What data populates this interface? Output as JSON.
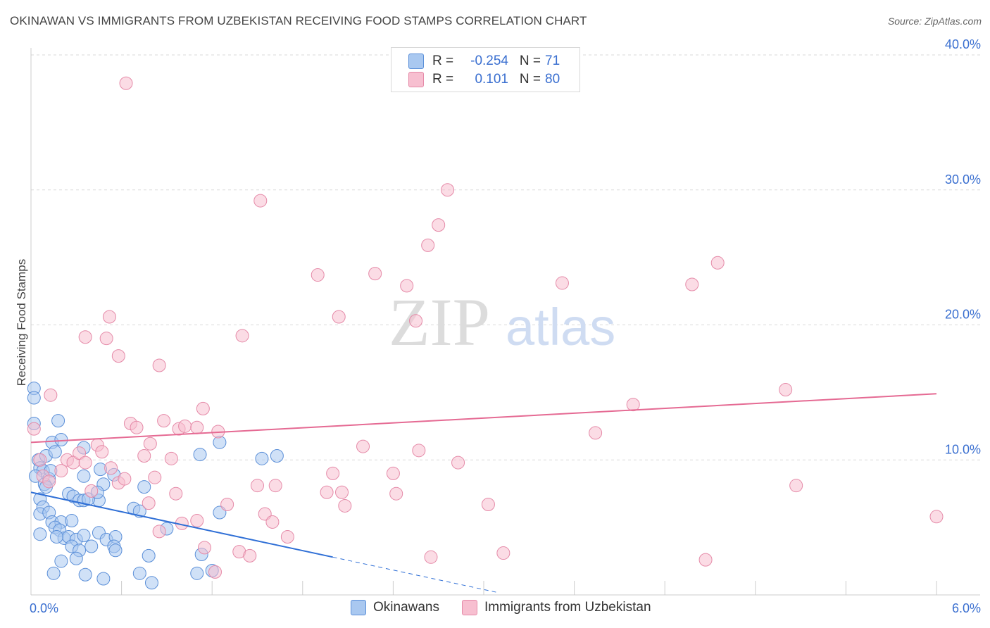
{
  "title": "OKINAWAN VS IMMIGRANTS FROM UZBEKISTAN RECEIVING FOOD STAMPS CORRELATION CHART",
  "source": "Source: ZipAtlas.com",
  "watermark": {
    "zip": "ZIP",
    "atlas": "atlas"
  },
  "colors": {
    "blue_fill": "#a9c8f0",
    "blue_stroke": "#5b8fd8",
    "blue_line": "#2f6fd6",
    "pink_fill": "#f7bfd0",
    "pink_stroke": "#e58aa8",
    "pink_line": "#e56a93",
    "tick_label": "#3a6fd0",
    "grid": "#d9d9d9"
  },
  "legend": {
    "rows": [
      {
        "r_label": "R =",
        "r_value": "-0.254",
        "n_label": "N =",
        "n_value": "71"
      },
      {
        "r_label": "R =",
        "r_value": "0.101",
        "n_label": "N =",
        "n_value": "80"
      }
    ]
  },
  "bottom_legend": {
    "series1": "Okinawans",
    "series2": "Immigrants from Uzbekistan"
  },
  "chart_data": {
    "type": "scatter",
    "title": "OKINAWAN VS IMMIGRANTS FROM UZBEKISTAN RECEIVING FOOD STAMPS CORRELATION CHART",
    "xlabel": "",
    "ylabel": "Receiving Food Stamps",
    "xlim": [
      0,
      6
    ],
    "ylim": [
      0,
      40
    ],
    "x_tick_labels": [
      "0.0%",
      "6.0%"
    ],
    "y_ticks": [
      10,
      20,
      30,
      40
    ],
    "y_tick_labels": [
      "10.0%",
      "20.0%",
      "30.0%",
      "40.0%"
    ],
    "series": [
      {
        "name": "Okinawans",
        "r": -0.254,
        "n": 71,
        "trend": {
          "x0": 0,
          "y0": 7.6,
          "x1": 2.0,
          "y1": 2.8,
          "dash_to_x": 3.1
        },
        "points": [
          [
            0.02,
            15.3
          ],
          [
            0.02,
            14.6
          ],
          [
            0.02,
            12.7
          ],
          [
            0.05,
            10.0
          ],
          [
            0.06,
            9.4
          ],
          [
            0.08,
            9.2
          ],
          [
            0.03,
            8.8
          ],
          [
            0.09,
            8.2
          ],
          [
            0.12,
            8.6
          ],
          [
            0.1,
            10.3
          ],
          [
            0.14,
            11.3
          ],
          [
            0.18,
            12.9
          ],
          [
            0.2,
            11.5
          ],
          [
            0.16,
            10.6
          ],
          [
            0.35,
            10.9
          ],
          [
            0.46,
            9.3
          ],
          [
            0.55,
            8.9
          ],
          [
            0.35,
            8.8
          ],
          [
            0.48,
            8.2
          ],
          [
            0.06,
            7.1
          ],
          [
            0.08,
            6.5
          ],
          [
            0.06,
            6.0
          ],
          [
            0.12,
            6.1
          ],
          [
            0.14,
            5.4
          ],
          [
            0.2,
            5.4
          ],
          [
            0.27,
            5.5
          ],
          [
            0.16,
            5.0
          ],
          [
            0.19,
            4.8
          ],
          [
            0.22,
            4.2
          ],
          [
            0.25,
            4.3
          ],
          [
            0.3,
            4.1
          ],
          [
            0.35,
            4.4
          ],
          [
            0.4,
            3.6
          ],
          [
            0.45,
            4.6
          ],
          [
            0.5,
            4.1
          ],
          [
            0.56,
            4.3
          ],
          [
            0.27,
            3.6
          ],
          [
            0.32,
            3.3
          ],
          [
            0.55,
            3.6
          ],
          [
            0.56,
            3.3
          ],
          [
            0.25,
            7.5
          ],
          [
            0.28,
            7.3
          ],
          [
            0.32,
            7.0
          ],
          [
            0.35,
            7.0
          ],
          [
            0.45,
            7.0
          ],
          [
            0.75,
            8.0
          ],
          [
            0.68,
            6.4
          ],
          [
            0.72,
            6.2
          ],
          [
            0.9,
            4.9
          ],
          [
            0.2,
            2.5
          ],
          [
            0.3,
            2.7
          ],
          [
            0.15,
            1.6
          ],
          [
            0.36,
            1.5
          ],
          [
            0.48,
            1.2
          ],
          [
            0.72,
            1.6
          ],
          [
            0.8,
            0.9
          ],
          [
            0.78,
            2.9
          ],
          [
            1.1,
            1.6
          ],
          [
            1.2,
            1.8
          ],
          [
            1.13,
            3.0
          ],
          [
            1.12,
            10.4
          ],
          [
            1.25,
            11.3
          ],
          [
            1.25,
            6.1
          ],
          [
            1.53,
            10.1
          ],
          [
            1.63,
            10.3
          ],
          [
            0.38,
            7.1
          ],
          [
            0.44,
            7.6
          ],
          [
            0.13,
            9.2
          ],
          [
            0.1,
            8.0
          ],
          [
            0.17,
            4.3
          ],
          [
            0.06,
            4.5
          ]
        ]
      },
      {
        "name": "Immigrants from Uzbekistan",
        "r": 0.101,
        "n": 80,
        "trend": {
          "x0": 0,
          "y0": 11.3,
          "x1": 6.0,
          "y1": 14.9
        },
        "points": [
          [
            0.02,
            12.3
          ],
          [
            0.13,
            14.8
          ],
          [
            0.36,
            19.1
          ],
          [
            0.5,
            19.0
          ],
          [
            0.52,
            20.6
          ],
          [
            0.58,
            17.7
          ],
          [
            0.63,
            37.9
          ],
          [
            0.85,
            17.0
          ],
          [
            0.06,
            10.0
          ],
          [
            0.08,
            8.8
          ],
          [
            0.12,
            8.4
          ],
          [
            0.2,
            9.2
          ],
          [
            0.24,
            10.0
          ],
          [
            0.28,
            9.8
          ],
          [
            0.32,
            10.5
          ],
          [
            0.36,
            9.8
          ],
          [
            0.4,
            7.7
          ],
          [
            0.44,
            11.1
          ],
          [
            0.47,
            10.6
          ],
          [
            0.53,
            9.4
          ],
          [
            0.58,
            8.3
          ],
          [
            0.62,
            8.6
          ],
          [
            0.66,
            12.7
          ],
          [
            0.7,
            12.4
          ],
          [
            0.75,
            10.3
          ],
          [
            0.79,
            11.2
          ],
          [
            0.82,
            8.7
          ],
          [
            0.88,
            12.9
          ],
          [
            0.93,
            10.1
          ],
          [
            0.98,
            12.3
          ],
          [
            1.02,
            12.5
          ],
          [
            1.1,
            12.4
          ],
          [
            1.14,
            13.8
          ],
          [
            1.24,
            12.1
          ],
          [
            0.96,
            7.5
          ],
          [
            1.0,
            5.3
          ],
          [
            1.1,
            5.5
          ],
          [
            0.85,
            4.7
          ],
          [
            0.78,
            6.8
          ],
          [
            1.15,
            3.5
          ],
          [
            1.22,
            1.7
          ],
          [
            1.3,
            6.7
          ],
          [
            1.38,
            3.2
          ],
          [
            1.45,
            2.9
          ],
          [
            1.55,
            6.0
          ],
          [
            1.6,
            5.4
          ],
          [
            1.7,
            4.3
          ],
          [
            1.5,
            8.1
          ],
          [
            1.62,
            8.1
          ],
          [
            1.4,
            19.2
          ],
          [
            1.52,
            29.2
          ],
          [
            1.9,
            23.7
          ],
          [
            2.04,
            20.6
          ],
          [
            2.28,
            23.8
          ],
          [
            2.49,
            22.9
          ],
          [
            2.55,
            20.3
          ],
          [
            2.63,
            25.9
          ],
          [
            2.7,
            27.4
          ],
          [
            2.76,
            30.0
          ],
          [
            1.96,
            7.6
          ],
          [
            2.0,
            9.0
          ],
          [
            2.06,
            7.6
          ],
          [
            2.08,
            6.6
          ],
          [
            2.2,
            11.0
          ],
          [
            2.4,
            9.0
          ],
          [
            2.42,
            7.5
          ],
          [
            2.57,
            10.7
          ],
          [
            2.65,
            2.8
          ],
          [
            2.83,
            9.8
          ],
          [
            3.03,
            6.7
          ],
          [
            3.13,
            3.1
          ],
          [
            3.52,
            23.1
          ],
          [
            3.74,
            12.0
          ],
          [
            3.99,
            14.1
          ],
          [
            4.38,
            23.0
          ],
          [
            4.47,
            2.6
          ],
          [
            4.55,
            24.6
          ],
          [
            5.0,
            15.2
          ],
          [
            5.07,
            8.1
          ],
          [
            6.0,
            5.8
          ]
        ]
      }
    ]
  }
}
